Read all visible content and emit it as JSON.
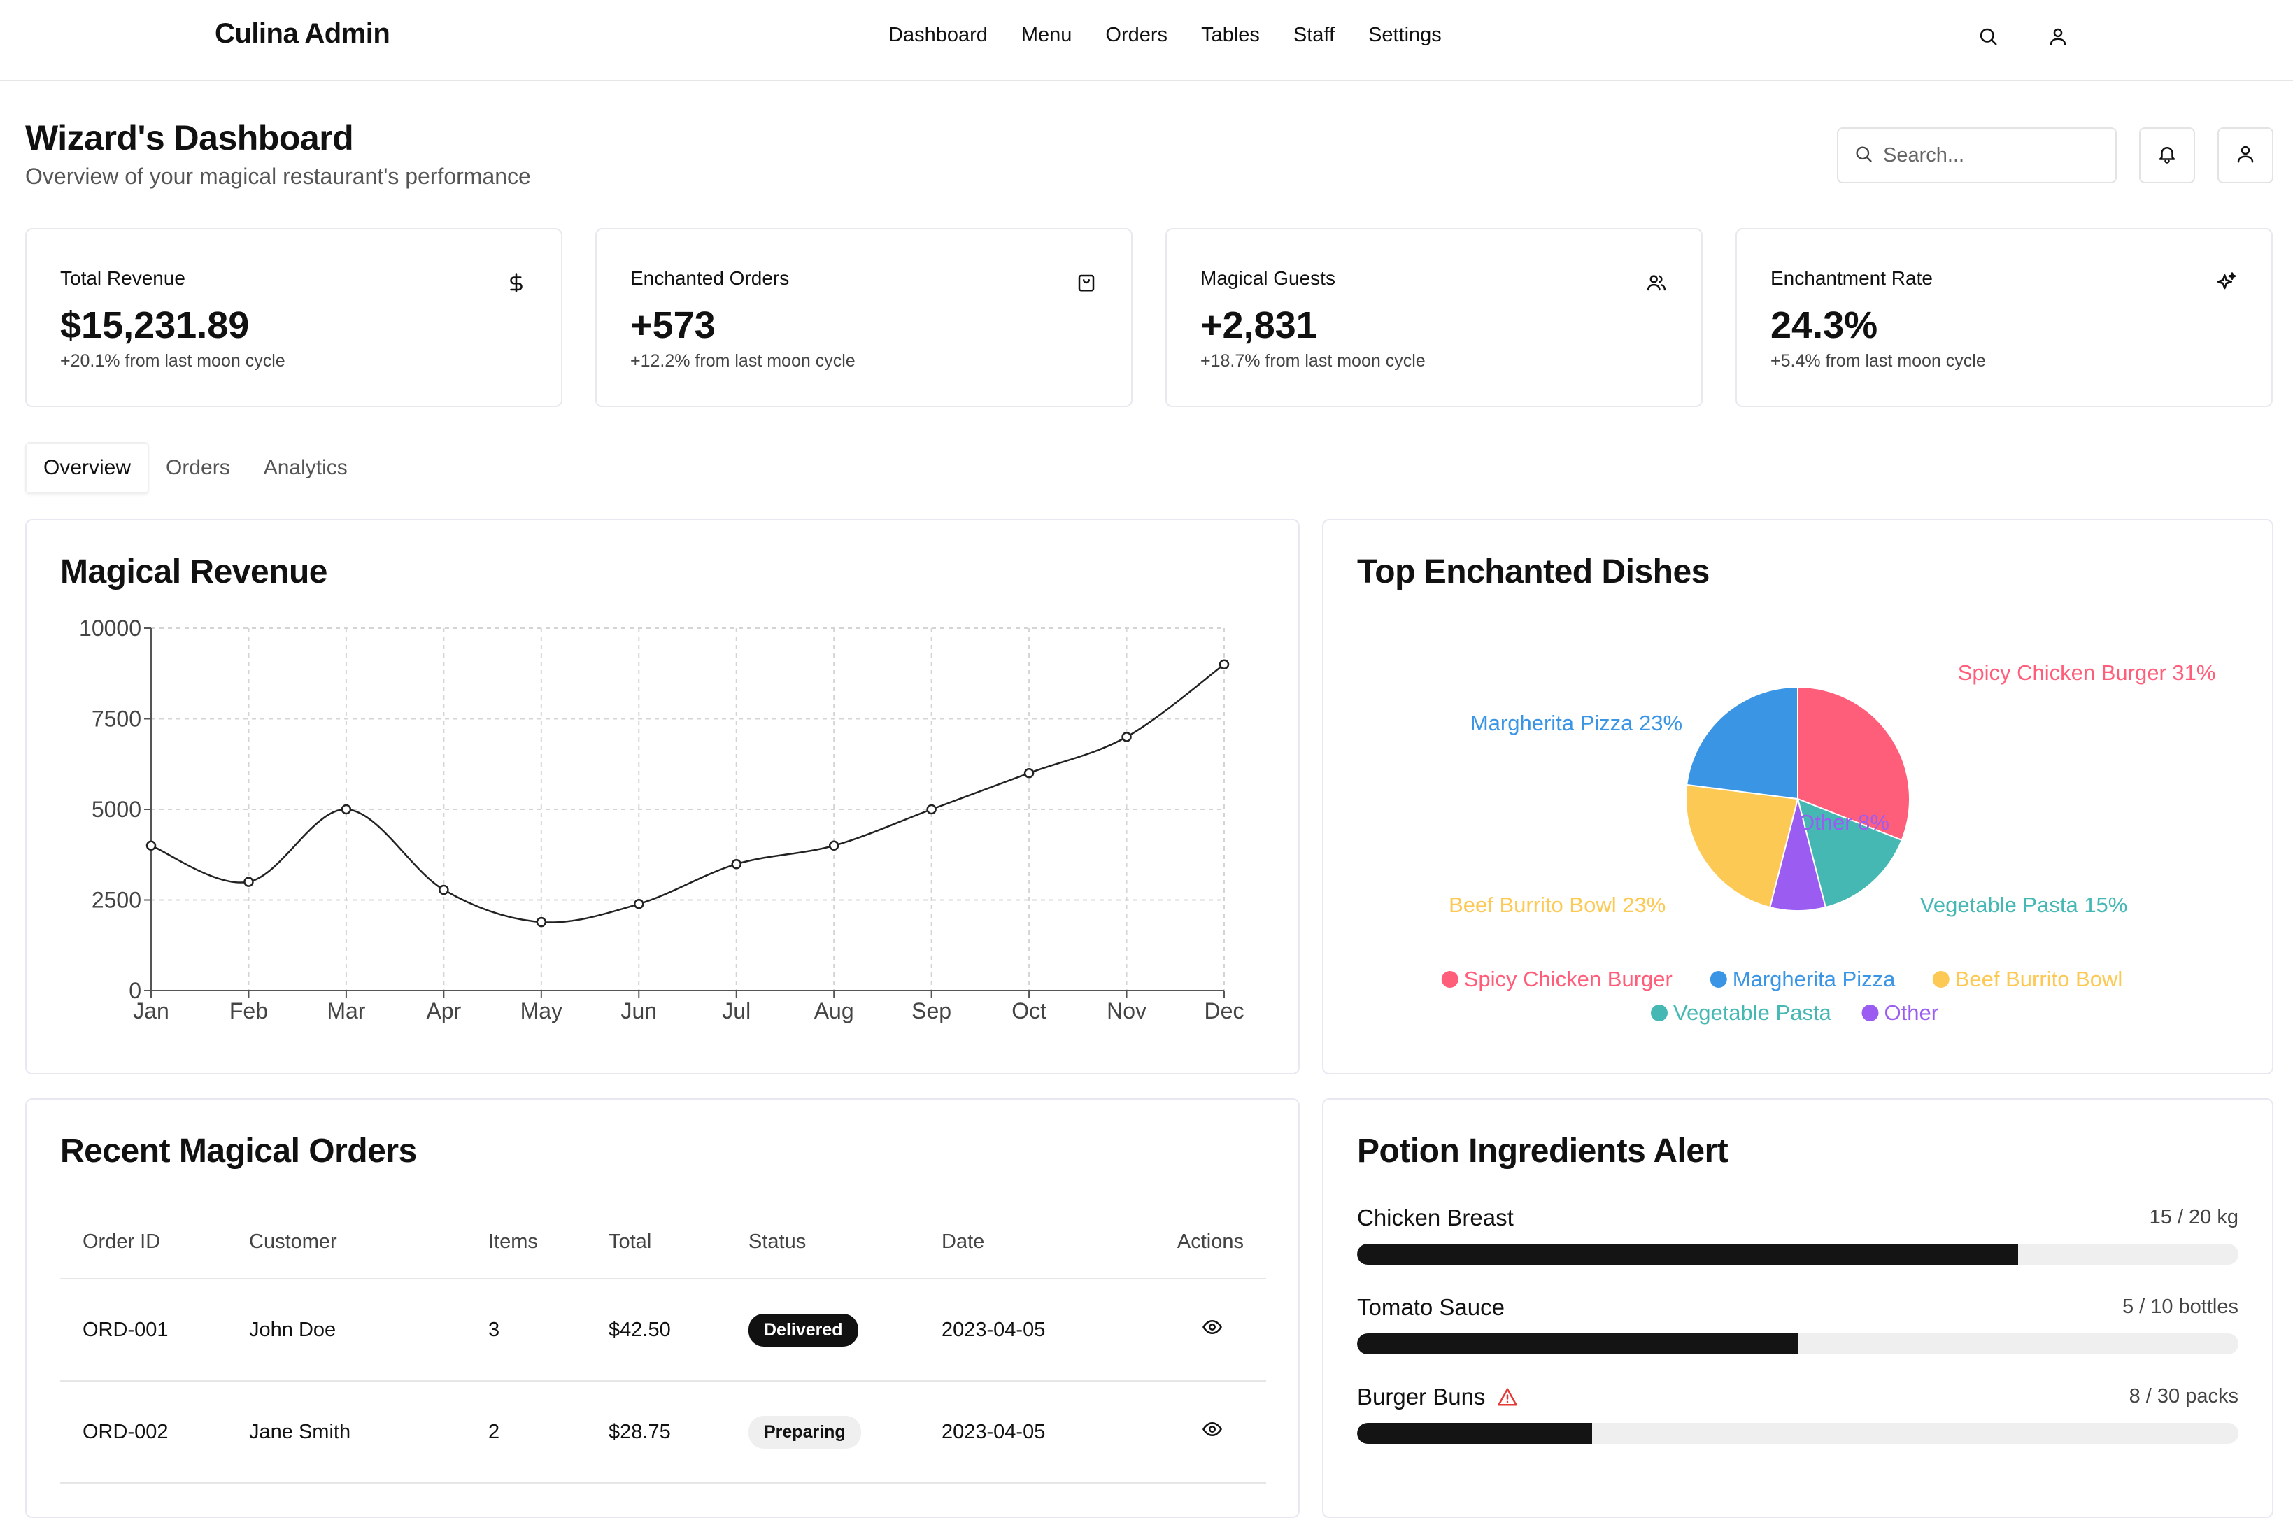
{
  "brand": "Culina Admin",
  "nav": [
    "Dashboard",
    "Menu",
    "Orders",
    "Tables",
    "Staff",
    "Settings"
  ],
  "header": {
    "title": "Wizard's Dashboard",
    "subtitle": "Overview of your magical restaurant's performance",
    "search_placeholder": "Search..."
  },
  "stats": [
    {
      "label": "Total Revenue",
      "value": "$15,231.89",
      "change": "+20.1% from last moon cycle",
      "icon": "dollar-icon"
    },
    {
      "label": "Enchanted Orders",
      "value": "+573",
      "change": "+12.2% from last moon cycle",
      "icon": "shopping-bag-icon"
    },
    {
      "label": "Magical Guests",
      "value": "+2,831",
      "change": "+18.7% from last moon cycle",
      "icon": "users-icon"
    },
    {
      "label": "Enchantment Rate",
      "value": "24.3%",
      "change": "+5.4% from last moon cycle",
      "icon": "sparkles-icon"
    }
  ],
  "tabs": [
    "Overview",
    "Orders",
    "Analytics"
  ],
  "revenue_panel": {
    "title": "Magical Revenue"
  },
  "dishes_panel": {
    "title": "Top Enchanted Dishes"
  },
  "chart_data": [
    {
      "type": "line",
      "title": "Magical Revenue",
      "categories": [
        "Jan",
        "Feb",
        "Mar",
        "Apr",
        "May",
        "Jun",
        "Jul",
        "Aug",
        "Sep",
        "Oct",
        "Nov",
        "Dec"
      ],
      "values": [
        4000,
        3000,
        5000,
        2780,
        1890,
        2390,
        3490,
        4000,
        5000,
        6000,
        7000,
        9000
      ],
      "yticks": [
        0,
        2500,
        5000,
        7500,
        10000
      ],
      "ylim": [
        0,
        10000
      ],
      "grid": true,
      "color": "#222222"
    },
    {
      "type": "pie",
      "title": "Top Enchanted Dishes",
      "slices": [
        {
          "name": "Spicy Chicken Burger",
          "value": 31,
          "label": "Spicy Chicken Burger 31%",
          "color": "#ff5e7a"
        },
        {
          "name": "Vegetable Pasta",
          "value": 15,
          "label": "Vegetable Pasta 15%",
          "color": "#46b8b4"
        },
        {
          "name": "Other",
          "value": 8,
          "label": "Other 8%",
          "color": "#9b5cf2"
        },
        {
          "name": "Beef Burrito Bowl",
          "value": 23,
          "label": "Beef Burrito Bowl 23%",
          "color": "#fdc955"
        },
        {
          "name": "Margherita Pizza",
          "value": 23,
          "label": "Margherita Pizza 23%",
          "color": "#3a95e4"
        }
      ],
      "legend_order": [
        "Spicy Chicken Burger",
        "Margherita Pizza",
        "Beef Burrito Bowl",
        "Vegetable Pasta",
        "Other"
      ],
      "legend_position": "bottom"
    }
  ],
  "orders": {
    "title": "Recent Magical Orders",
    "columns": [
      "Order ID",
      "Customer",
      "Items",
      "Total",
      "Status",
      "Date",
      "Actions"
    ],
    "rows": [
      {
        "id": "ORD-001",
        "customer": "John Doe",
        "items": "3",
        "total": "$42.50",
        "status": "Delivered",
        "date": "2023-04-05"
      },
      {
        "id": "ORD-002",
        "customer": "Jane Smith",
        "items": "2",
        "total": "$28.75",
        "status": "Preparing",
        "date": "2023-04-05"
      }
    ]
  },
  "ingredients": {
    "title": "Potion Ingredients Alert",
    "items": [
      {
        "name": "Chicken Breast",
        "qty": "15 / 20 kg",
        "fraction": 0.75,
        "alert": false
      },
      {
        "name": "Tomato Sauce",
        "qty": "5 / 10 bottles",
        "fraction": 0.5,
        "alert": false
      },
      {
        "name": "Burger Buns",
        "qty": "8 / 30 packs",
        "fraction": 0.2667,
        "alert": true
      }
    ]
  }
}
